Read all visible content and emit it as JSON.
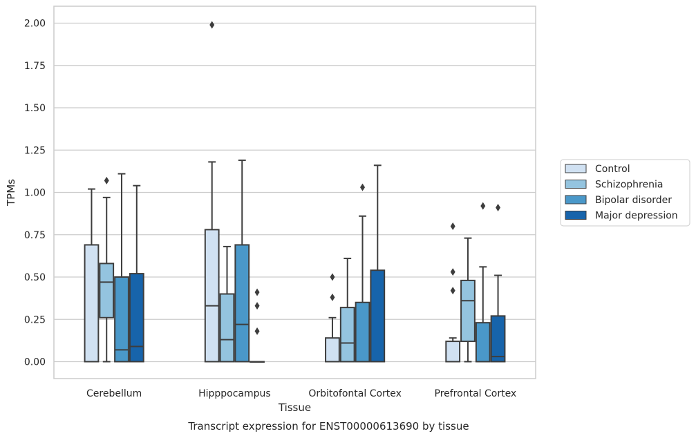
{
  "caption": "Transcript expression for ENST00000613690 by tissue",
  "chart_data": {
    "type": "box",
    "xlabel": "Tissue",
    "ylabel": "TPMs",
    "ylim": [
      -0.1,
      2.1
    ],
    "yticks": [
      0.0,
      0.25,
      0.5,
      0.75,
      1.0,
      1.25,
      1.5,
      1.75,
      2.0
    ],
    "ytick_labels": [
      "0.00",
      "0.25",
      "0.50",
      "0.75",
      "1.00",
      "1.25",
      "1.50",
      "1.75",
      "2.00"
    ],
    "grid": "horizontal",
    "legend_position": "right",
    "categories": [
      "Cerebellum",
      "Hipppocampus",
      "Orbitofontal Cortex",
      "Prefrontal Cortex"
    ],
    "series": [
      {
        "name": "Control",
        "color": "#d0e1f2",
        "boxes": [
          {
            "whislo": 0.0,
            "q1": 0.0,
            "med": 0.0,
            "q3": 0.69,
            "whishi": 1.02,
            "fliers": []
          },
          {
            "whislo": 0.0,
            "q1": 0.0,
            "med": 0.33,
            "q3": 0.78,
            "whishi": 1.18,
            "fliers": [
              1.99
            ]
          },
          {
            "whislo": 0.0,
            "q1": 0.0,
            "med": 0.0,
            "q3": 0.14,
            "whishi": 0.26,
            "fliers": [
              0.38,
              0.5
            ]
          },
          {
            "whislo": 0.0,
            "q1": 0.0,
            "med": 0.0,
            "q3": 0.12,
            "whishi": 0.14,
            "fliers": [
              0.42,
              0.53,
              0.8
            ]
          }
        ]
      },
      {
        "name": "Schizophrenia",
        "color": "#94c4df",
        "boxes": [
          {
            "whislo": 0.0,
            "q1": 0.26,
            "med": 0.47,
            "q3": 0.58,
            "whishi": 0.97,
            "fliers": [
              1.07
            ]
          },
          {
            "whislo": 0.0,
            "q1": 0.0,
            "med": 0.13,
            "q3": 0.4,
            "whishi": 0.68,
            "fliers": []
          },
          {
            "whislo": 0.0,
            "q1": 0.0,
            "med": 0.11,
            "q3": 0.32,
            "whishi": 0.61,
            "fliers": []
          },
          {
            "whislo": 0.0,
            "q1": 0.12,
            "med": 0.36,
            "q3": 0.48,
            "whishi": 0.73,
            "fliers": []
          }
        ]
      },
      {
        "name": "Bipolar disorder",
        "color": "#4a98c9",
        "boxes": [
          {
            "whislo": 0.0,
            "q1": 0.0,
            "med": 0.07,
            "q3": 0.5,
            "whishi": 1.11,
            "fliers": []
          },
          {
            "whislo": 0.0,
            "q1": 0.0,
            "med": 0.22,
            "q3": 0.69,
            "whishi": 1.19,
            "fliers": []
          },
          {
            "whislo": 0.0,
            "q1": 0.0,
            "med": 0.0,
            "q3": 0.35,
            "whishi": 0.86,
            "fliers": [
              1.03
            ]
          },
          {
            "whislo": 0.0,
            "q1": 0.0,
            "med": 0.0,
            "q3": 0.23,
            "whishi": 0.56,
            "fliers": [
              0.92
            ]
          }
        ]
      },
      {
        "name": "Major depression",
        "color": "#1764ab",
        "boxes": [
          {
            "whislo": 0.0,
            "q1": 0.0,
            "med": 0.09,
            "q3": 0.52,
            "whishi": 1.04,
            "fliers": []
          },
          {
            "whislo": 0.0,
            "q1": 0.0,
            "med": 0.0,
            "q3": 0.0,
            "whishi": 0.0,
            "fliers": [
              0.18,
              0.33,
              0.41
            ]
          },
          {
            "whislo": 0.0,
            "q1": 0.0,
            "med": 0.0,
            "q3": 0.54,
            "whishi": 1.16,
            "fliers": []
          },
          {
            "whislo": 0.0,
            "q1": 0.0,
            "med": 0.03,
            "q3": 0.27,
            "whishi": 0.51,
            "fliers": [
              0.91
            ]
          }
        ]
      }
    ]
  }
}
